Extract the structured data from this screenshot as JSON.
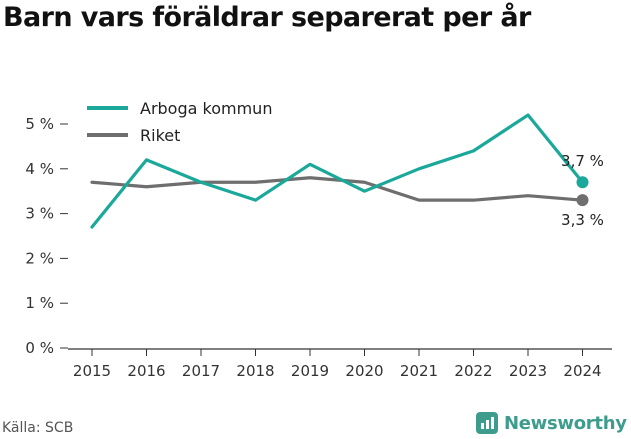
{
  "title": "Barn vars föräldrar separerat per år",
  "source": "Källa: SCB",
  "brand": "Newsworthy",
  "colors": {
    "series_1": "#1aa89a",
    "series_2": "#6e6e6e",
    "brand": "#3e9c8d"
  },
  "chart_data": {
    "type": "line",
    "title": "Barn vars föräldrar separerat per år",
    "xlabel": "",
    "ylabel": "",
    "x": [
      "2015",
      "2016",
      "2017",
      "2018",
      "2019",
      "2020",
      "2021",
      "2022",
      "2023",
      "2024"
    ],
    "y_ticks": [
      "0 %",
      "1 %",
      "2 %",
      "3 %",
      "4 %",
      "5 %"
    ],
    "ylim": [
      0,
      5.6
    ],
    "grid": false,
    "legend_position": "top-left",
    "series": [
      {
        "name": "Arboga kommun",
        "values": [
          2.7,
          4.2,
          3.7,
          3.3,
          4.1,
          3.5,
          4.0,
          4.4,
          5.2,
          3.7
        ],
        "last_label": "3,7 %"
      },
      {
        "name": "Riket",
        "values": [
          3.7,
          3.6,
          3.7,
          3.7,
          3.8,
          3.7,
          3.3,
          3.3,
          3.4,
          3.3
        ],
        "last_label": "3,3 %"
      }
    ]
  }
}
